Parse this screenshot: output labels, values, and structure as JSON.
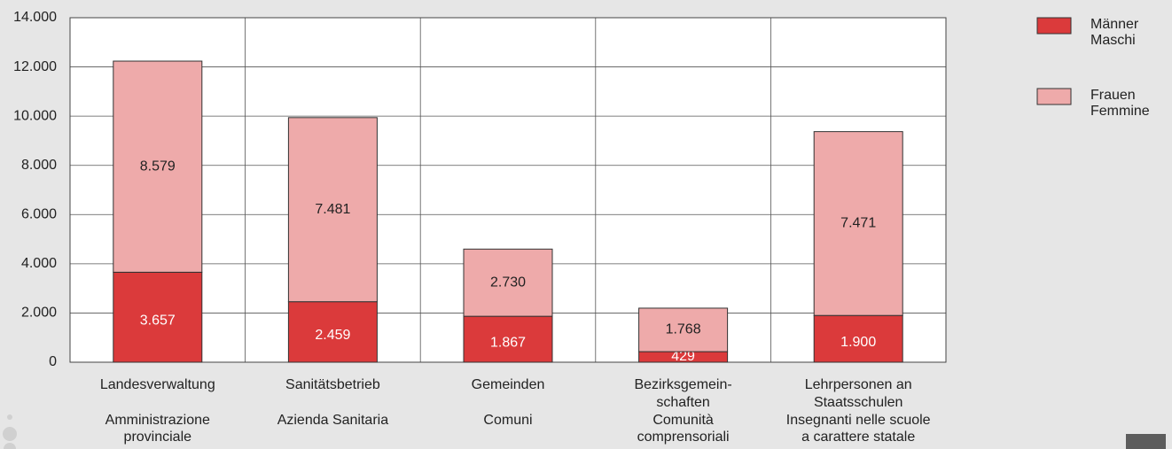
{
  "chart_data": {
    "type": "stacked_bar",
    "categories": [
      [
        "Landesverwaltung",
        "Amministrazione",
        "provinciale"
      ],
      [
        "Sanitätsbetrieb",
        "Azienda Sanitaria"
      ],
      [
        "Gemeinden",
        "Comuni"
      ],
      [
        "Bezirksgemein-",
        "schaften",
        "Comunità",
        "comprensoriali"
      ],
      [
        "Lehrpersonen an",
        "Staatsschulen",
        "Insegnanti nelle scuole",
        "a carattere statale"
      ]
    ],
    "series": [
      {
        "name": [
          "Männer",
          "Maschi"
        ],
        "color": "#db3a3b",
        "values": [
          3657,
          2459,
          1867,
          429,
          1900
        ],
        "value_labels": [
          "3.657",
          "2.459",
          "1.867",
          "429",
          "1.900"
        ]
      },
      {
        "name": [
          "Frauen",
          "Femmine"
        ],
        "color": "#eeaaaa",
        "values": [
          8579,
          7481,
          2730,
          1768,
          7471
        ],
        "value_labels": [
          "8.579",
          "7.481",
          "2.730",
          "1.768",
          "7.471"
        ]
      }
    ],
    "ylim": [
      0,
      14000
    ],
    "yticks": [
      {
        "value": 0,
        "label": "0"
      },
      {
        "value": 2000,
        "label": "2.000"
      },
      {
        "value": 4000,
        "label": "4.000"
      },
      {
        "value": 6000,
        "label": "6.000"
      },
      {
        "value": 8000,
        "label": "8.000"
      },
      {
        "value": 10000,
        "label": "10.000"
      },
      {
        "value": 12000,
        "label": "12.000"
      },
      {
        "value": 14000,
        "label": "14.000"
      }
    ],
    "grid": true,
    "legend": "right"
  }
}
